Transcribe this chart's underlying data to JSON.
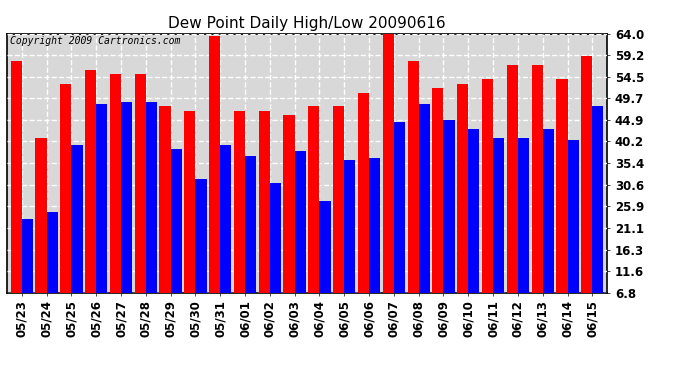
{
  "title": "Dew Point Daily High/Low 20090616",
  "copyright": "Copyright 2009 Cartronics.com",
  "dates": [
    "05/23",
    "05/24",
    "05/25",
    "05/26",
    "05/27",
    "05/28",
    "05/29",
    "05/30",
    "05/31",
    "06/01",
    "06/02",
    "06/03",
    "06/04",
    "06/05",
    "06/06",
    "06/07",
    "06/08",
    "06/09",
    "06/10",
    "06/11",
    "06/12",
    "06/13",
    "06/14",
    "06/15"
  ],
  "highs": [
    58.0,
    41.0,
    53.0,
    56.0,
    55.0,
    55.0,
    48.0,
    47.0,
    63.5,
    47.0,
    47.0,
    46.0,
    48.0,
    48.0,
    51.0,
    64.0,
    58.0,
    52.0,
    53.0,
    54.0,
    57.0,
    57.0,
    54.0,
    59.0
  ],
  "lows": [
    23.0,
    24.5,
    39.5,
    48.5,
    49.0,
    49.0,
    38.5,
    32.0,
    39.5,
    37.0,
    31.0,
    38.0,
    27.0,
    36.0,
    36.5,
    44.5,
    48.5,
    45.0,
    43.0,
    41.0,
    41.0,
    43.0,
    40.5,
    48.0
  ],
  "high_color": "#ff0000",
  "low_color": "#0000ff",
  "bg_color": "#ffffff",
  "plot_bg_color": "#d8d8d8",
  "grid_color": "#ffffff",
  "yticks": [
    6.8,
    11.6,
    16.3,
    21.1,
    25.9,
    30.6,
    35.4,
    40.2,
    44.9,
    49.7,
    54.5,
    59.2,
    64.0
  ],
  "ymin": 6.8,
  "ymax": 64.0,
  "title_fontsize": 11,
  "copyright_fontsize": 7,
  "tick_fontsize": 8.5
}
